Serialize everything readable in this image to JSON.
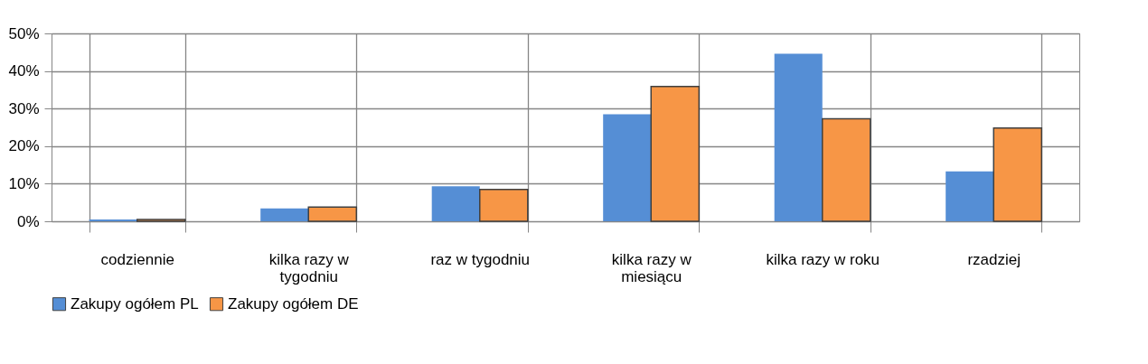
{
  "chart_data": {
    "type": "bar",
    "categories": [
      "codziennie",
      "kilka razy w tygodniu",
      "raz w tygodniu",
      "kilka razy w miesiącu",
      "kilka razy w roku",
      "rzadziej"
    ],
    "series": [
      {
        "name": "Zakupy ogółem PL",
        "color": "#558ed5",
        "values": [
          0.5,
          3.4,
          9.3,
          28.5,
          44.6,
          13.3
        ]
      },
      {
        "name": "Zakupy ogółem DE",
        "color": "#f79646",
        "values": [
          0.5,
          3.8,
          8.5,
          35.9,
          27.3,
          24.8
        ]
      }
    ],
    "ylim": [
      0,
      50
    ],
    "yticks": [
      {
        "value": 0,
        "label": "0%"
      },
      {
        "value": 10,
        "label": "10%"
      },
      {
        "value": 20,
        "label": "20%"
      },
      {
        "value": 30,
        "label": "30%"
      },
      {
        "value": 40,
        "label": "40%"
      },
      {
        "value": 50,
        "label": "50%"
      }
    ],
    "grid": true,
    "legend": "bottom"
  }
}
